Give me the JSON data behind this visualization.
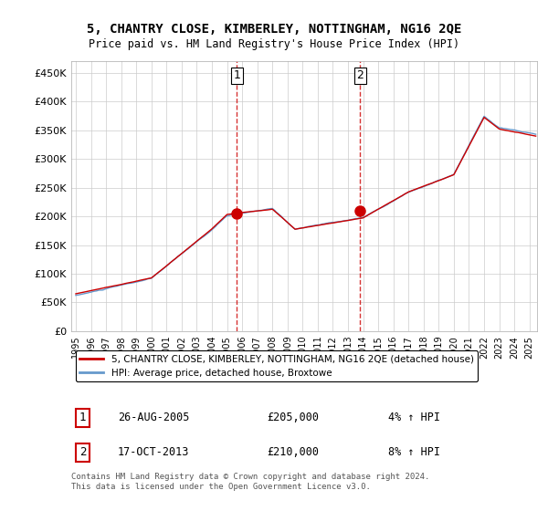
{
  "title": "5, CHANTRY CLOSE, KIMBERLEY, NOTTINGHAM, NG16 2QE",
  "subtitle": "Price paid vs. HM Land Registry's House Price Index (HPI)",
  "ylabel_ticks": [
    "£0",
    "£50K",
    "£100K",
    "£150K",
    "£200K",
    "£250K",
    "£300K",
    "£350K",
    "£400K",
    "£450K"
  ],
  "ytick_values": [
    0,
    50000,
    100000,
    150000,
    200000,
    250000,
    300000,
    350000,
    400000,
    450000
  ],
  "ylim": [
    0,
    470000
  ],
  "xlim_start": 1995.0,
  "xlim_end": 2025.5,
  "sale1_x": 2005.65,
  "sale1_y": 205000,
  "sale1_label": "1",
  "sale1_date": "26-AUG-2005",
  "sale1_price": "£205,000",
  "sale1_hpi": "4% ↑ HPI",
  "sale2_x": 2013.79,
  "sale2_y": 210000,
  "sale2_label": "2",
  "sale2_date": "17-OCT-2013",
  "sale2_price": "£210,000",
  "sale2_hpi": "8% ↑ HPI",
  "line_color_red": "#cc0000",
  "line_color_blue": "#6699cc",
  "grid_color": "#cccccc",
  "background_color": "#ffffff",
  "legend_label_red": "5, CHANTRY CLOSE, KIMBERLEY, NOTTINGHAM, NG16 2QE (detached house)",
  "legend_label_blue": "HPI: Average price, detached house, Broxtowe",
  "footer": "Contains HM Land Registry data © Crown copyright and database right 2024.\nThis data is licensed under the Open Government Licence v3.0.",
  "xtick_years": [
    1995,
    1996,
    1997,
    1998,
    1999,
    2000,
    2001,
    2002,
    2003,
    2004,
    2005,
    2006,
    2007,
    2008,
    2009,
    2010,
    2011,
    2012,
    2013,
    2014,
    2015,
    2016,
    2017,
    2018,
    2019,
    2020,
    2021,
    2022,
    2023,
    2024,
    2025
  ]
}
